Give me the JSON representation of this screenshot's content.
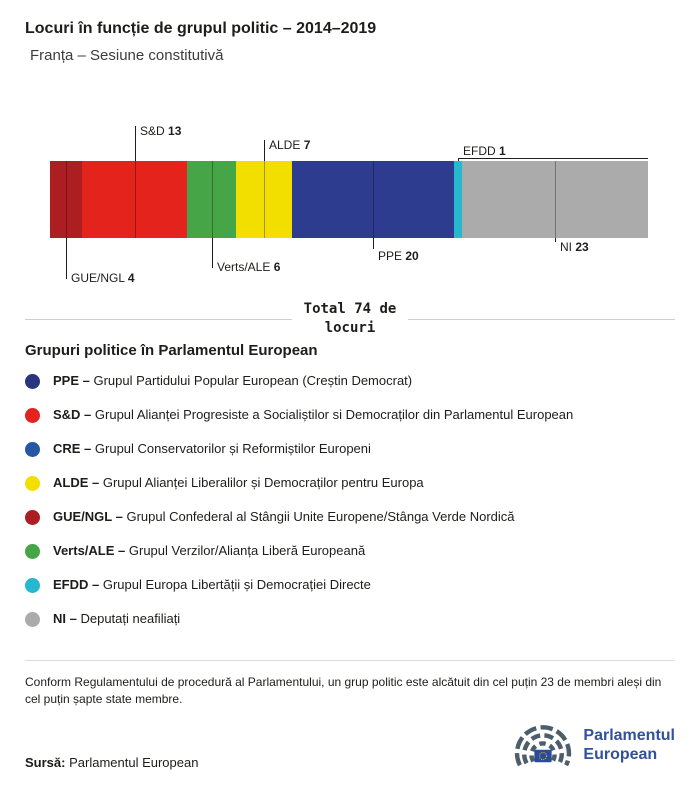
{
  "header": {
    "title": "Locuri în funcție de grupul politic – 2014–2019",
    "subtitle": "Franța – Sesiune constitutivă"
  },
  "chart_data": {
    "type": "bar",
    "subtype": "horizontal-stacked",
    "title": "Locuri în funcție de grupul politic – 2014–2019",
    "subtitle": "Franța – Sesiune constitutivă",
    "total_seats": 74,
    "total_label": "Total 74 de\nlocuri",
    "segments": [
      {
        "group": "GUE/NGL",
        "seats": 4,
        "color": "#ad1e22"
      },
      {
        "group": "S&D",
        "seats": 13,
        "color": "#e5231d"
      },
      {
        "group": "Verts/ALE",
        "seats": 6,
        "color": "#46a546"
      },
      {
        "group": "ALDE",
        "seats": 7,
        "color": "#f2df00"
      },
      {
        "group": "PPE",
        "seats": 20,
        "color": "#2d3c8f"
      },
      {
        "group": "EFDD",
        "seats": 1,
        "color": "#25b8ce"
      },
      {
        "group": "NI",
        "seats": 23,
        "color": "#ababab"
      }
    ]
  },
  "legend": {
    "heading": "Grupuri politice în Parlamentul European",
    "items": [
      {
        "abbr": "PPE –",
        "desc": "Grupul Partidului Popular European (Creștin Democrat)",
        "color": "#2a3580"
      },
      {
        "abbr": "S&D –",
        "desc": "Grupul Alianței Progresiste a Socialiștilor si Democraților din Parlamentul European",
        "color": "#e5231d"
      },
      {
        "abbr": "CRE –",
        "desc": "Grupul Conservatorilor și Reformiștilor Europeni",
        "color": "#2458a5"
      },
      {
        "abbr": "ALDE –",
        "desc": "Grupul Alianței Liberalilor și Democraților pentru Europa",
        "color": "#f2df00"
      },
      {
        "abbr": "GUE/NGL –",
        "desc": "Grupul Confederal al Stângii Unite Europene/Stânga Verde Nordică",
        "color": "#ad1e22"
      },
      {
        "abbr": "Verts/ALE –",
        "desc": "Grupul Verzilor/Alianța Liberă Europeană",
        "color": "#46a546"
      },
      {
        "abbr": "EFDD –",
        "desc": "Grupul Europa Libertății și Democrației Directe",
        "color": "#25b8ce"
      },
      {
        "abbr": "NI –",
        "desc": "Deputați neafiliați",
        "color": "#ababab"
      }
    ]
  },
  "footer": {
    "note": "Conform Regulamentului de procedură al Parlamentului, un grup politic este alcătuit din cel puțin 23 de membri aleși din cel puțin șapte state membre.",
    "source_label": "Sursă:",
    "source_value": "Parlamentul European",
    "logo_line1": "Parlamentul",
    "logo_line2": "European"
  }
}
